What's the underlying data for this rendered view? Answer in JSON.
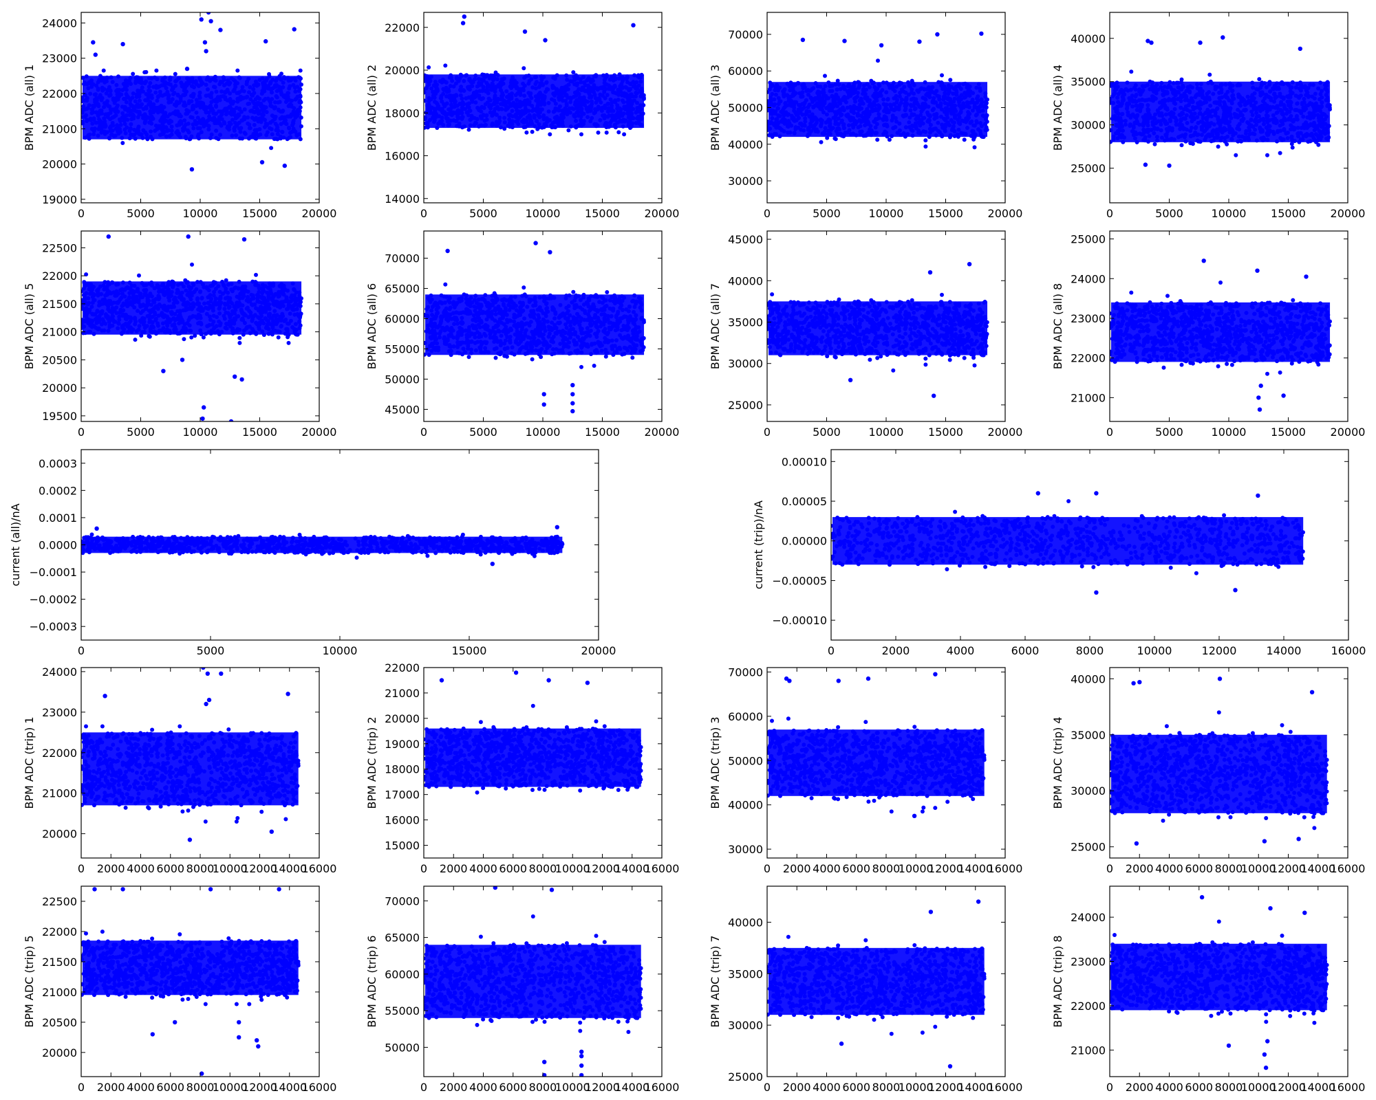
{
  "figure": {
    "marker_color": "#0000ff",
    "frame_color": "#000000",
    "background": "#ffffff",
    "grid": false
  },
  "chart_data": [
    {
      "type": "scatter",
      "ylabel": "BPM ADC (all) 1",
      "xlim": [
        0,
        20000
      ],
      "ylim": [
        18900,
        24300
      ],
      "xticks": [
        0,
        5000,
        10000,
        15000,
        20000
      ],
      "yticks": [
        19000,
        20000,
        21000,
        22000,
        23000,
        24000
      ],
      "x_max": 18500,
      "band": [
        20700,
        22500
      ],
      "spread": [
        20250,
        22650
      ],
      "outliers": [
        [
          1000,
          23450
        ],
        [
          1200,
          23100
        ],
        [
          3500,
          23400
        ],
        [
          8900,
          22700
        ],
        [
          9300,
          19850
        ],
        [
          10100,
          24100
        ],
        [
          10400,
          23450
        ],
        [
          10500,
          23200
        ],
        [
          10700,
          24300
        ],
        [
          10900,
          24050
        ],
        [
          11700,
          23800
        ],
        [
          15500,
          23480
        ],
        [
          17100,
          19950
        ],
        [
          17900,
          23820
        ],
        [
          15200,
          20050
        ]
      ]
    },
    {
      "type": "scatter",
      "ylabel": "BPM ADC (all) 2",
      "xlim": [
        0,
        20000
      ],
      "ylim": [
        13800,
        22700
      ],
      "xticks": [
        0,
        5000,
        10000,
        15000,
        20000
      ],
      "yticks": [
        14000,
        16000,
        18000,
        20000,
        22000
      ],
      "x_max": 18500,
      "band": [
        17300,
        19800
      ],
      "spread": [
        17000,
        21500
      ],
      "outliers": [
        [
          3300,
          22200
        ],
        [
          3400,
          22500
        ],
        [
          8500,
          21800
        ],
        [
          17600,
          22100
        ],
        [
          10200,
          21400
        ]
      ]
    },
    {
      "type": "scatter",
      "ylabel": "BPM ADC (all) 3",
      "xlim": [
        0,
        20000
      ],
      "ylim": [
        24000,
        76000
      ],
      "xticks": [
        0,
        5000,
        10000,
        15000,
        20000
      ],
      "yticks": [
        30000,
        40000,
        50000,
        60000,
        70000
      ],
      "x_max": 18500,
      "band": [
        42000,
        57000
      ],
      "spread": [
        38000,
        64000
      ],
      "outliers": [
        [
          3000,
          68500
        ],
        [
          6500,
          68200
        ],
        [
          9600,
          67000
        ],
        [
          14300,
          70000
        ],
        [
          18000,
          70200
        ],
        [
          12800,
          68000
        ]
      ]
    },
    {
      "type": "scatter",
      "ylabel": "BPM ADC (all) 4",
      "xlim": [
        0,
        20000
      ],
      "ylim": [
        21000,
        43000
      ],
      "xticks": [
        0,
        5000,
        10000,
        15000,
        20000
      ],
      "yticks": [
        25000,
        30000,
        35000,
        40000
      ],
      "x_max": 18500,
      "band": [
        28000,
        35000
      ],
      "spread": [
        26500,
        37000
      ],
      "outliers": [
        [
          3200,
          39700
        ],
        [
          3500,
          39500
        ],
        [
          9500,
          40100
        ],
        [
          7600,
          39500
        ],
        [
          16000,
          38800
        ],
        [
          5000,
          25300
        ],
        [
          3000,
          25400
        ]
      ]
    },
    {
      "type": "scatter",
      "ylabel": "BPM ADC (all) 5",
      "xlim": [
        0,
        20000
      ],
      "ylim": [
        19400,
        22800
      ],
      "xticks": [
        0,
        5000,
        10000,
        15000,
        20000
      ],
      "yticks": [
        19500,
        20000,
        20500,
        21000,
        21500,
        22000,
        22500
      ],
      "x_max": 18500,
      "band": [
        20950,
        21900
      ],
      "spread": [
        20800,
        22200
      ],
      "outliers": [
        [
          10200,
          19450
        ],
        [
          10300,
          19650
        ],
        [
          12600,
          19400
        ],
        [
          13500,
          20150
        ],
        [
          12900,
          20200
        ],
        [
          6900,
          20300
        ],
        [
          8500,
          20500
        ],
        [
          9000,
          22700
        ],
        [
          13700,
          22650
        ],
        [
          2300,
          22700
        ]
      ]
    },
    {
      "type": "scatter",
      "ylabel": "BPM ADC (all) 6",
      "xlim": [
        0,
        20000
      ],
      "ylim": [
        43000,
        74500
      ],
      "xticks": [
        0,
        5000,
        10000,
        15000,
        20000
      ],
      "yticks": [
        45000,
        50000,
        55000,
        60000,
        65000,
        70000
      ],
      "x_max": 18500,
      "band": [
        54000,
        64000
      ],
      "spread": [
        52000,
        68000
      ],
      "outliers": [
        [
          9400,
          72500
        ],
        [
          10100,
          45800
        ],
        [
          10100,
          47500
        ],
        [
          12500,
          44700
        ],
        [
          12500,
          46000
        ],
        [
          12500,
          47500
        ],
        [
          12500,
          49000
        ],
        [
          10600,
          71000
        ],
        [
          2000,
          71200
        ]
      ]
    },
    {
      "type": "scatter",
      "ylabel": "BPM ADC (all) 7",
      "xlim": [
        0,
        20000
      ],
      "ylim": [
        23000,
        46000
      ],
      "xticks": [
        0,
        5000,
        10000,
        15000,
        20000
      ],
      "yticks": [
        25000,
        30000,
        35000,
        40000,
        45000
      ],
      "x_max": 18500,
      "band": [
        31000,
        37500
      ],
      "spread": [
        29000,
        39500
      ],
      "outliers": [
        [
          17000,
          42000
        ],
        [
          14000,
          26100
        ],
        [
          13700,
          41000
        ],
        [
          7000,
          28000
        ]
      ]
    },
    {
      "type": "scatter",
      "ylabel": "BPM ADC (all) 8",
      "xlim": [
        0,
        20000
      ],
      "ylim": [
        20400,
        25200
      ],
      "xticks": [
        0,
        5000,
        10000,
        15000,
        20000
      ],
      "yticks": [
        21000,
        22000,
        23000,
        24000,
        25000
      ],
      "x_max": 18500,
      "band": [
        21900,
        23400
      ],
      "spread": [
        21600,
        23900
      ],
      "outliers": [
        [
          12600,
          20700
        ],
        [
          12500,
          21000
        ],
        [
          12700,
          21300
        ],
        [
          7900,
          24450
        ],
        [
          12400,
          24200
        ],
        [
          16500,
          24050
        ],
        [
          14600,
          21050
        ]
      ]
    },
    {
      "type": "scatter",
      "ylabel": "current (all)/nA",
      "xlim": [
        0,
        20000
      ],
      "ylim": [
        -0.00035,
        0.00035
      ],
      "xticks": [
        0,
        5000,
        10000,
        15000,
        20000
      ],
      "yticks": [
        -0.0003,
        -0.0002,
        -0.0001,
        0.0,
        0.0001,
        0.0002,
        0.0003
      ],
      "ytick_labels": [
        "−0.0003",
        "−0.0002",
        "−0.0001",
        "0.0000",
        "0.0001",
        "0.0002",
        "0.0003"
      ],
      "x_max": 18600,
      "band": [
        -3e-05,
        3e-05
      ],
      "spread": [
        -6e-05,
        6e-05
      ],
      "outliers": [
        [
          18400,
          6.5e-05
        ],
        [
          600,
          6e-05
        ],
        [
          15900,
          -7e-05
        ]
      ]
    },
    {
      "type": "scatter",
      "ylabel": "current (trip)/nA",
      "xlim": [
        0,
        16000
      ],
      "ylim": [
        -0.000125,
        0.000115
      ],
      "xticks": [
        0,
        2000,
        4000,
        6000,
        8000,
        10000,
        12000,
        14000,
        16000
      ],
      "yticks": [
        -0.0001,
        -5e-05,
        0.0,
        5e-05,
        0.0001
      ],
      "ytick_labels": [
        "−0.00010",
        "−0.00005",
        "0.00000",
        "0.00005",
        "0.00010"
      ],
      "x_max": 14600,
      "band": [
        -3e-05,
        3e-05
      ],
      "spread": [
        -5e-05,
        5e-05
      ],
      "outliers": [
        [
          6400,
          6e-05
        ],
        [
          8200,
          6e-05
        ],
        [
          8200,
          -6.5e-05
        ],
        [
          12500,
          -6.2e-05
        ],
        [
          13200,
          5.7e-05
        ]
      ]
    },
    {
      "type": "scatter",
      "ylabel": "BPM ADC (trip) 1",
      "xlim": [
        0,
        16000
      ],
      "ylim": [
        19400,
        24100
      ],
      "xticks": [
        0,
        2000,
        4000,
        6000,
        8000,
        10000,
        12000,
        14000,
        16000
      ],
      "yticks": [
        20000,
        21000,
        22000,
        23000,
        24000
      ],
      "x_max": 14600,
      "band": [
        20700,
        22500
      ],
      "spread": [
        20300,
        22650
      ],
      "outliers": [
        [
          1600,
          23400
        ],
        [
          8200,
          24100
        ],
        [
          8400,
          23200
        ],
        [
          8600,
          23300
        ],
        [
          8500,
          23950
        ],
        [
          9400,
          23950
        ],
        [
          13900,
          23450
        ],
        [
          7300,
          19850
        ],
        [
          12800,
          20050
        ]
      ]
    },
    {
      "type": "scatter",
      "ylabel": "BPM ADC (trip) 2",
      "xlim": [
        0,
        16000
      ],
      "ylim": [
        14500,
        22000
      ],
      "xticks": [
        0,
        2000,
        4000,
        6000,
        8000,
        10000,
        12000,
        14000,
        16000
      ],
      "yticks": [
        15000,
        16000,
        17000,
        18000,
        19000,
        20000,
        21000,
        22000
      ],
      "x_max": 14600,
      "band": [
        17300,
        19600
      ],
      "spread": [
        17000,
        21200
      ],
      "outliers": [
        [
          6200,
          21800
        ],
        [
          8400,
          21500
        ],
        [
          1200,
          21500
        ],
        [
          11000,
          21400
        ]
      ]
    },
    {
      "type": "scatter",
      "ylabel": "BPM ADC (trip) 3",
      "xlim": [
        0,
        16000
      ],
      "ylim": [
        28000,
        71000
      ],
      "xticks": [
        0,
        2000,
        4000,
        6000,
        8000,
        10000,
        12000,
        14000,
        16000
      ],
      "yticks": [
        30000,
        40000,
        50000,
        60000,
        70000
      ],
      "x_max": 14600,
      "band": [
        42000,
        57000
      ],
      "spread": [
        38500,
        63500
      ],
      "outliers": [
        [
          11300,
          69500
        ],
        [
          1300,
          68500
        ],
        [
          1500,
          68000
        ],
        [
          4800,
          68000
        ],
        [
          6800,
          68500
        ],
        [
          9900,
          37500
        ]
      ]
    },
    {
      "type": "scatter",
      "ylabel": "BPM ADC (trip) 4",
      "xlim": [
        0,
        16000
      ],
      "ylim": [
        24000,
        41000
      ],
      "xticks": [
        0,
        2000,
        4000,
        6000,
        8000,
        10000,
        12000,
        14000,
        16000
      ],
      "yticks": [
        25000,
        30000,
        35000,
        40000
      ],
      "x_max": 14600,
      "band": [
        28000,
        35000
      ],
      "spread": [
        26500,
        37000
      ],
      "outliers": [
        [
          7400,
          40000
        ],
        [
          1600,
          39600
        ],
        [
          2000,
          39700
        ],
        [
          13600,
          38800
        ],
        [
          1800,
          25300
        ],
        [
          10400,
          25500
        ],
        [
          12700,
          25700
        ]
      ]
    },
    {
      "type": "scatter",
      "ylabel": "BPM ADC (trip) 5",
      "xlim": [
        0,
        16000
      ],
      "ylim": [
        19600,
        22750
      ],
      "xticks": [
        0,
        2000,
        4000,
        6000,
        8000,
        10000,
        12000,
        14000,
        16000
      ],
      "yticks": [
        20000,
        20500,
        21000,
        21500,
        22000,
        22500
      ],
      "x_max": 14600,
      "band": [
        20950,
        21850
      ],
      "spread": [
        20800,
        22200
      ],
      "outliers": [
        [
          8100,
          19650
        ],
        [
          4800,
          20300
        ],
        [
          6300,
          20500
        ],
        [
          10600,
          20500
        ],
        [
          10600,
          20250
        ],
        [
          11800,
          20200
        ],
        [
          11900,
          20100
        ],
        [
          900,
          22700
        ],
        [
          2800,
          22700
        ],
        [
          8700,
          22700
        ],
        [
          13300,
          22700
        ]
      ]
    },
    {
      "type": "scatter",
      "ylabel": "BPM ADC (trip) 6",
      "xlim": [
        0,
        16000
      ],
      "ylim": [
        46000,
        72000
      ],
      "xticks": [
        0,
        2000,
        4000,
        6000,
        8000,
        10000,
        12000,
        14000,
        16000
      ],
      "yticks": [
        50000,
        55000,
        60000,
        65000,
        70000
      ],
      "x_max": 14600,
      "band": [
        54000,
        64000
      ],
      "spread": [
        52000,
        68000
      ],
      "outliers": [
        [
          4800,
          71800
        ],
        [
          8600,
          71500
        ],
        [
          8100,
          46200
        ],
        [
          8100,
          48000
        ],
        [
          10600,
          46200
        ],
        [
          10600,
          47500
        ],
        [
          10600,
          48800
        ],
        [
          10600,
          49400
        ]
      ]
    },
    {
      "type": "scatter",
      "ylabel": "BPM ADC (trip) 7",
      "xlim": [
        0,
        16000
      ],
      "ylim": [
        25000,
        43500
      ],
      "xticks": [
        0,
        2000,
        4000,
        6000,
        8000,
        10000,
        12000,
        14000,
        16000
      ],
      "yticks": [
        25000,
        30000,
        35000,
        40000
      ],
      "x_max": 14600,
      "band": [
        31000,
        37500
      ],
      "spread": [
        29000,
        39500
      ],
      "outliers": [
        [
          14200,
          42000
        ],
        [
          12300,
          26000
        ],
        [
          11000,
          41000
        ],
        [
          5000,
          28200
        ]
      ]
    },
    {
      "type": "scatter",
      "ylabel": "BPM ADC (trip) 8",
      "xlim": [
        0,
        16000
      ],
      "ylim": [
        20400,
        24700
      ],
      "xticks": [
        0,
        2000,
        4000,
        6000,
        8000,
        10000,
        12000,
        14000,
        16000
      ],
      "yticks": [
        21000,
        22000,
        23000,
        24000
      ],
      "x_max": 14600,
      "band": [
        21900,
        23400
      ],
      "spread": [
        21600,
        23900
      ],
      "outliers": [
        [
          10500,
          20600
        ],
        [
          10400,
          20900
        ],
        [
          10600,
          21200
        ],
        [
          6200,
          24450
        ],
        [
          10800,
          24200
        ],
        [
          13100,
          24100
        ],
        [
          8000,
          21100
        ]
      ]
    }
  ]
}
